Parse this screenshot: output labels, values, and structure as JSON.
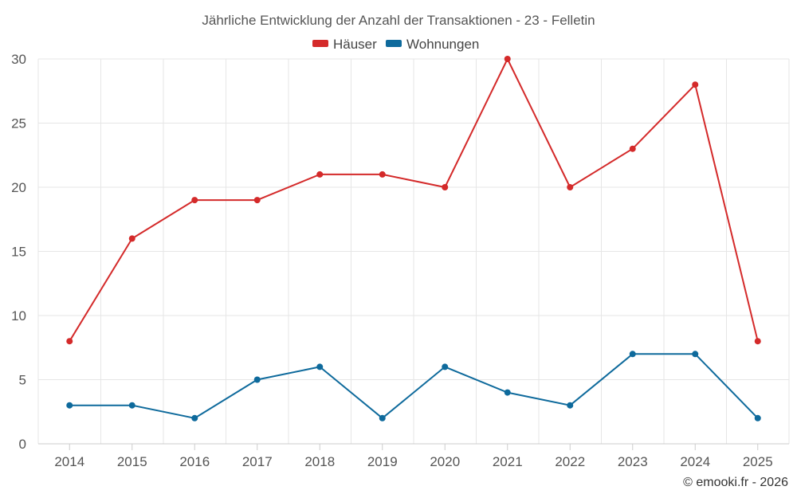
{
  "chart_data": {
    "type": "line",
    "title": "Jährliche Entwicklung der Anzahl der Transaktionen - 23 - Felletin",
    "xlabel": "",
    "ylabel": "",
    "categories": [
      "2014",
      "2015",
      "2016",
      "2017",
      "2018",
      "2019",
      "2020",
      "2021",
      "2022",
      "2023",
      "2024",
      "2025"
    ],
    "ylim": [
      0,
      30
    ],
    "yticks": [
      0,
      5,
      10,
      15,
      20,
      25,
      30
    ],
    "grid": true,
    "legend_position": "top-center",
    "series": [
      {
        "name": "Häuser",
        "color": "#d42a2a",
        "values": [
          8,
          16,
          19,
          19,
          21,
          21,
          20,
          30,
          20,
          23,
          28,
          8
        ]
      },
      {
        "name": "Wohnungen",
        "color": "#0e6a9c",
        "values": [
          3,
          3,
          2,
          5,
          6,
          2,
          6,
          4,
          3,
          7,
          7,
          2
        ]
      }
    ]
  },
  "credit": "© emooki.fr - 2026"
}
